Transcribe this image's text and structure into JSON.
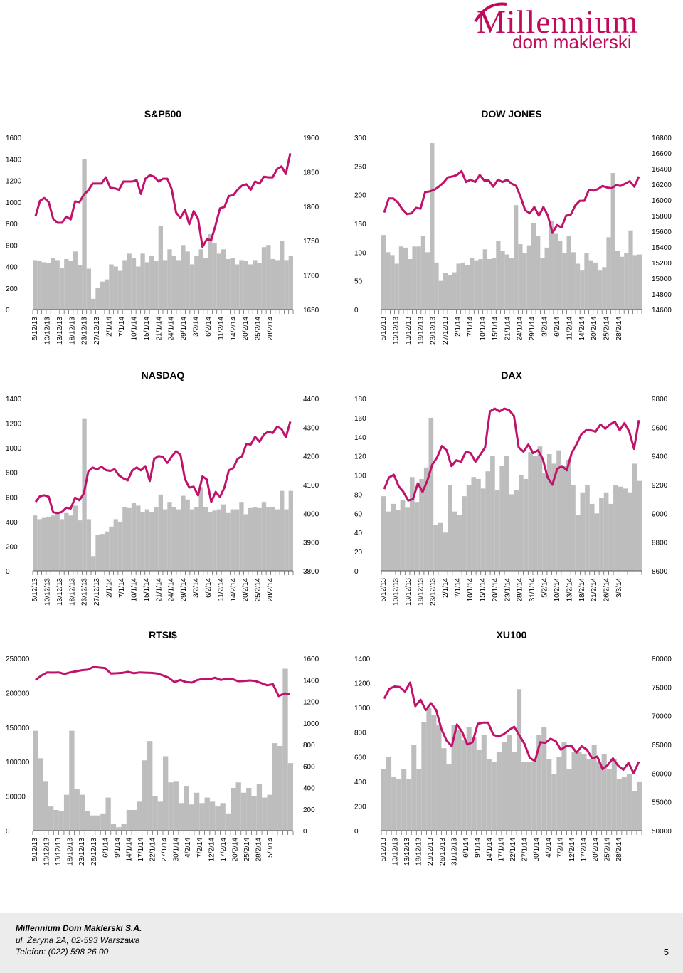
{
  "logo": {
    "name": "Millennium",
    "tagline": "dom maklerski"
  },
  "footer": {
    "company": "Millennium Dom Maklerski S.A.",
    "address": "ul. Żaryna 2A, 02-593 Warszawa",
    "phone": "Telefon: (022) 598 26 00",
    "page_number": "5"
  },
  "colors": {
    "price_line": "#c0126b",
    "volume_bar": "#bdbdbd",
    "brand": "#c20a5d"
  },
  "chart_data": [
    {
      "type": "bar+line",
      "title": "S&P500",
      "left_ticks": [
        "0",
        "200",
        "400",
        "600",
        "800",
        "1000",
        "1200",
        "1400",
        "1600"
      ],
      "right_ticks": [
        "1650",
        "1700",
        "1750",
        "1800",
        "1850",
        "1900"
      ],
      "left_range": [
        0,
        1600
      ],
      "right_range": [
        1650,
        1900
      ],
      "x_labels": [
        "5/12/13",
        "10/12/13",
        "13/12/13",
        "18/12/13",
        "23/12/13",
        "27/12/13",
        "2/1/14",
        "7/1/14",
        "10/1/14",
        "15/1/14",
        "21/1/14",
        "24/1/14",
        "29/1/14",
        "3/2/14",
        "6/2/14",
        "11/2/14",
        "14/2/14",
        "20/2/14",
        "25/2/14",
        "28/2/14"
      ],
      "volume": [
        460,
        450,
        440,
        430,
        480,
        460,
        390,
        470,
        450,
        540,
        410,
        1400,
        380,
        100,
        200,
        260,
        280,
        420,
        400,
        360,
        460,
        520,
        480,
        400,
        520,
        440,
        500,
        450,
        780,
        460,
        560,
        500,
        460,
        600,
        540,
        420,
        500,
        560,
        480,
        700,
        620,
        520,
        560,
        470,
        480,
        420,
        460,
        450,
        420,
        460,
        430,
        580,
        600,
        470,
        460,
        640,
        460,
        500
      ],
      "price": [
        1786,
        1808,
        1812,
        1806,
        1782,
        1776,
        1776,
        1785,
        1781,
        1807,
        1806,
        1817,
        1823,
        1833,
        1833,
        1833,
        1842,
        1827,
        1826,
        1824,
        1836,
        1836,
        1836,
        1838,
        1818,
        1840,
        1845,
        1843,
        1836,
        1840,
        1840,
        1825,
        1791,
        1783,
        1795,
        1774,
        1793,
        1782,
        1741,
        1752,
        1751,
        1773,
        1797,
        1799,
        1815,
        1816,
        1824,
        1830,
        1832,
        1824,
        1836,
        1833,
        1843,
        1842,
        1842,
        1854,
        1858,
        1847,
        1877
      ]
    },
    {
      "type": "bar+line",
      "title": "DOW JONES",
      "left_ticks": [
        "0",
        "50",
        "100",
        "150",
        "200",
        "250",
        "300"
      ],
      "right_ticks": [
        "14600",
        "14800",
        "15000",
        "15200",
        "15400",
        "15600",
        "15800",
        "16000",
        "16200",
        "16400",
        "16600",
        "16800"
      ],
      "left_range": [
        0,
        300
      ],
      "right_range": [
        14600,
        16800
      ],
      "x_labels": [
        "5/12/13",
        "10/12/13",
        "13/12/13",
        "18/12/13",
        "23/12/13",
        "27/12/13",
        "2/1/14",
        "7/1/14",
        "10/1/14",
        "15/1/14",
        "21/1/14",
        "24/1/14",
        "29/1/14",
        "3/2/14",
        "6/2/14",
        "11/2/14",
        "14/2/14",
        "20/2/14",
        "25/2/14",
        "28/2/14"
      ],
      "volume": [
        130,
        100,
        95,
        80,
        110,
        108,
        88,
        110,
        110,
        128,
        100,
        290,
        82,
        50,
        64,
        60,
        65,
        80,
        82,
        78,
        90,
        86,
        88,
        105,
        88,
        90,
        120,
        102,
        96,
        90,
        182,
        114,
        98,
        112,
        150,
        128,
        90,
        108,
        154,
        132,
        120,
        98,
        128,
        100,
        80,
        68,
        98,
        86,
        82,
        68,
        74,
        126,
        238,
        102,
        92,
        98,
        138,
        95,
        96
      ],
      "price": [
        15840,
        16020,
        16020,
        15970,
        15880,
        15820,
        15830,
        15900,
        15890,
        16100,
        16110,
        16130,
        16170,
        16220,
        16290,
        16300,
        16320,
        16370,
        16230,
        16260,
        16230,
        16320,
        16250,
        16250,
        16170,
        16260,
        16230,
        16260,
        16210,
        16180,
        16040,
        15870,
        15830,
        15910,
        15800,
        15910,
        15800,
        15580,
        15680,
        15650,
        15800,
        15810,
        15930,
        15990,
        15990,
        16130,
        16120,
        16140,
        16180,
        16160,
        16150,
        16190,
        16180,
        16210,
        16240,
        16170,
        16300
      ]
    },
    {
      "type": "bar+line",
      "title": "NASDAQ",
      "left_ticks": [
        "0",
        "200",
        "400",
        "600",
        "800",
        "1000",
        "1200",
        "1400"
      ],
      "right_ticks": [
        "3800",
        "3900",
        "4000",
        "4100",
        "4200",
        "4300",
        "4400"
      ],
      "left_range": [
        0,
        1400
      ],
      "right_range": [
        3800,
        4400
      ],
      "x_labels": [
        "5/12/13",
        "10/12/13",
        "13/12/13",
        "18/12/13",
        "23/12/13",
        "27/12/13",
        "2/1/14",
        "7/1/14",
        "10/1/14",
        "15/1/14",
        "21/1/14",
        "24/1/14",
        "29/1/14",
        "3/2/14",
        "6/2/14",
        "11/2/14",
        "14/2/14",
        "20/2/14",
        "25/2/14",
        "28/2/14"
      ],
      "volume": [
        450,
        420,
        430,
        440,
        450,
        470,
        420,
        470,
        450,
        530,
        410,
        1240,
        420,
        120,
        290,
        300,
        320,
        360,
        420,
        400,
        520,
        510,
        550,
        530,
        480,
        500,
        480,
        520,
        620,
        500,
        560,
        520,
        500,
        610,
        580,
        500,
        520,
        680,
        520,
        480,
        490,
        500,
        540,
        470,
        500,
        500,
        560,
        460,
        510,
        520,
        510,
        560,
        520,
        520,
        500,
        650,
        500,
        650
      ],
      "price": [
        4040,
        4060,
        4063,
        4058,
        4004,
        4001,
        4005,
        4020,
        4017,
        4055,
        4046,
        4070,
        4146,
        4160,
        4153,
        4163,
        4151,
        4148,
        4154,
        4132,
        4122,
        4115,
        4149,
        4160,
        4150,
        4165,
        4113,
        4190,
        4200,
        4197,
        4176,
        4198,
        4217,
        4204,
        4120,
        4090,
        4093,
        4063,
        4129,
        4118,
        4040,
        4075,
        4057,
        4090,
        4150,
        4158,
        4190,
        4199,
        4242,
        4240,
        4267,
        4250,
        4275,
        4285,
        4280,
        4302,
        4294,
        4265,
        4320
      ]
    },
    {
      "type": "bar+line",
      "title": "DAX",
      "left_ticks": [
        "0",
        "20",
        "40",
        "60",
        "80",
        "100",
        "120",
        "140",
        "160",
        "180"
      ],
      "right_ticks": [
        "8600",
        "8800",
        "9000",
        "9200",
        "9400",
        "9600",
        "9800"
      ],
      "left_range": [
        0,
        180
      ],
      "right_range": [
        8600,
        9800
      ],
      "x_labels": [
        "5/12/13",
        "10/12/13",
        "13/12/13",
        "18/12/13",
        "23/12/13",
        "2/1/14",
        "7/1/14",
        "10/1/14",
        "15/1/14",
        "20/1/14",
        "23/1/14",
        "28/1/14",
        "31/1/14",
        "5/2/14",
        "10/2/14",
        "13/2/14",
        "18/2/14",
        "21/2/14",
        "26/2/14",
        "3/3/14"
      ],
      "volume": [
        78,
        62,
        70,
        64,
        74,
        66,
        98,
        72,
        96,
        108,
        160,
        48,
        50,
        40,
        90,
        62,
        58,
        78,
        90,
        98,
        96,
        86,
        104,
        120,
        84,
        110,
        120,
        80,
        84,
        100,
        96,
        124,
        120,
        130,
        102,
        122,
        112,
        126,
        110,
        116,
        90,
        58,
        82,
        90,
        70,
        60,
        76,
        82,
        70,
        90,
        88,
        86,
        82,
        112,
        94
      ],
      "price": [
        9170,
        9250,
        9270,
        9190,
        9150,
        9090,
        9100,
        9210,
        9150,
        9230,
        9340,
        9390,
        9470,
        9440,
        9330,
        9370,
        9360,
        9430,
        9420,
        9360,
        9410,
        9460,
        9710,
        9730,
        9710,
        9730,
        9720,
        9680,
        9460,
        9430,
        9480,
        9420,
        9440,
        9380,
        9250,
        9200,
        9310,
        9330,
        9300,
        9420,
        9480,
        9550,
        9580,
        9580,
        9570,
        9620,
        9590,
        9620,
        9640,
        9580,
        9630,
        9570,
        9450,
        9650
      ]
    },
    {
      "type": "bar+line",
      "title": "RTSI$",
      "left_ticks": [
        "0",
        "50000",
        "100000",
        "150000",
        "200000",
        "250000"
      ],
      "right_ticks": [
        "0",
        "200",
        "400",
        "600",
        "800",
        "1000",
        "1200",
        "1400",
        "1600"
      ],
      "left_range": [
        0,
        250000
      ],
      "right_range": [
        0,
        1600
      ],
      "x_labels": [
        "5/12/13",
        "10/12/13",
        "13/12/13",
        "18/12/13",
        "23/12/13",
        "26/12/13",
        "6/1/14",
        "9/1/14",
        "14/1/14",
        "17/1/14",
        "22/1/14",
        "27/1/14",
        "30/1/14",
        "4/2/14",
        "7/2/14",
        "12/2/14",
        "17/2/14",
        "20/2/14",
        "25/2/14",
        "28/2/14",
        "5/3/14"
      ],
      "volume": [
        145000,
        105000,
        72000,
        35000,
        30000,
        28000,
        52000,
        145000,
        60000,
        52000,
        28000,
        22000,
        22000,
        25000,
        48000,
        10000,
        5000,
        10000,
        30000,
        30000,
        42000,
        102000,
        130000,
        50000,
        42000,
        108000,
        70000,
        72000,
        40000,
        65000,
        38000,
        55000,
        40000,
        48000,
        42000,
        35000,
        40000,
        25000,
        62000,
        70000,
        55000,
        62000,
        50000,
        68000,
        48000,
        52000,
        127000,
        123000,
        235000,
        98000
      ],
      "price": [
        1400,
        1440,
        1470,
        1468,
        1470,
        1455,
        1470,
        1480,
        1490,
        1495,
        1520,
        1515,
        1510,
        1460,
        1462,
        1465,
        1475,
        1462,
        1470,
        1467,
        1465,
        1460,
        1442,
        1420,
        1380,
        1400,
        1380,
        1375,
        1400,
        1410,
        1405,
        1420,
        1400,
        1410,
        1408,
        1388,
        1390,
        1395,
        1390,
        1370,
        1350,
        1360,
        1250,
        1275,
        1270
      ]
    },
    {
      "type": "bar+line",
      "title": "XU100",
      "left_ticks": [
        "0",
        "200",
        "400",
        "600",
        "800",
        "1000",
        "1200",
        "1400"
      ],
      "right_ticks": [
        "50000",
        "55000",
        "60000",
        "65000",
        "70000",
        "75000",
        "80000"
      ],
      "left_range": [
        0,
        1400
      ],
      "right_range": [
        50000,
        80000
      ],
      "x_labels": [
        "5/12/13",
        "10/12/13",
        "13/12/13",
        "18/12/13",
        "23/12/13",
        "26/12/13",
        "31/12/13",
        "6/1/14",
        "9/1/14",
        "14/1/14",
        "17/1/14",
        "22/1/14",
        "27/1/14",
        "30/1/14",
        "4/2/14",
        "7/2/14",
        "12/2/14",
        "17/2/14",
        "20/2/14",
        "25/2/14",
        "28/2/14"
      ],
      "volume": [
        500,
        600,
        440,
        420,
        500,
        420,
        700,
        500,
        880,
        1000,
        940,
        860,
        670,
        540,
        860,
        820,
        740,
        840,
        760,
        660,
        780,
        580,
        560,
        640,
        720,
        780,
        640,
        1150,
        560,
        560,
        560,
        780,
        840,
        580,
        460,
        600,
        720,
        500,
        640,
        640,
        620,
        580,
        700,
        560,
        620,
        500,
        580,
        420,
        440,
        460,
        320,
        400
      ],
      "price": [
        73000,
        74700,
        75100,
        75000,
        74200,
        75800,
        71700,
        72800,
        71000,
        72200,
        71000,
        67700,
        65700,
        64700,
        68500,
        67200,
        65000,
        65400,
        68600,
        68800,
        68800,
        66700,
        66400,
        66800,
        67500,
        68100,
        66600,
        65100,
        62700,
        62100,
        65400,
        65300,
        66000,
        65600,
        64100,
        64700,
        64800,
        63600,
        64700,
        64100,
        62600,
        62900,
        60700,
        61400,
        62600,
        61300,
        60600,
        61800,
        60000,
        62000
      ]
    }
  ]
}
